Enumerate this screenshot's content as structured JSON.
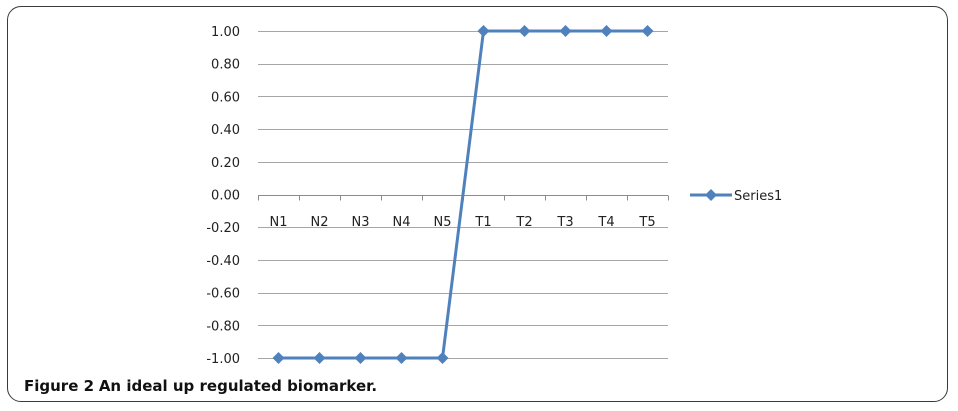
{
  "chart_data": {
    "type": "line",
    "categories": [
      "N1",
      "N2",
      "N3",
      "N4",
      "N5",
      "T1",
      "T2",
      "T3",
      "T4",
      "T5"
    ],
    "series": [
      {
        "name": "Series1",
        "values": [
          -1,
          -1,
          -1,
          -1,
          -1,
          1,
          1,
          1,
          1,
          1
        ],
        "color": "#4f81bd",
        "marker": "diamond"
      }
    ],
    "ylim": [
      -1,
      1
    ],
    "yticks": [
      "1.00",
      "0.80",
      "0.60",
      "0.40",
      "0.20",
      "0.00",
      "-0.20",
      "-0.40",
      "-0.60",
      "-0.80",
      "-1.00"
    ],
    "grid": true,
    "legend_position": "right",
    "gridline_color": "#a6a6a6"
  },
  "caption": {
    "label": "Figure 2",
    "text": "An ideal up regulated biomarker."
  }
}
